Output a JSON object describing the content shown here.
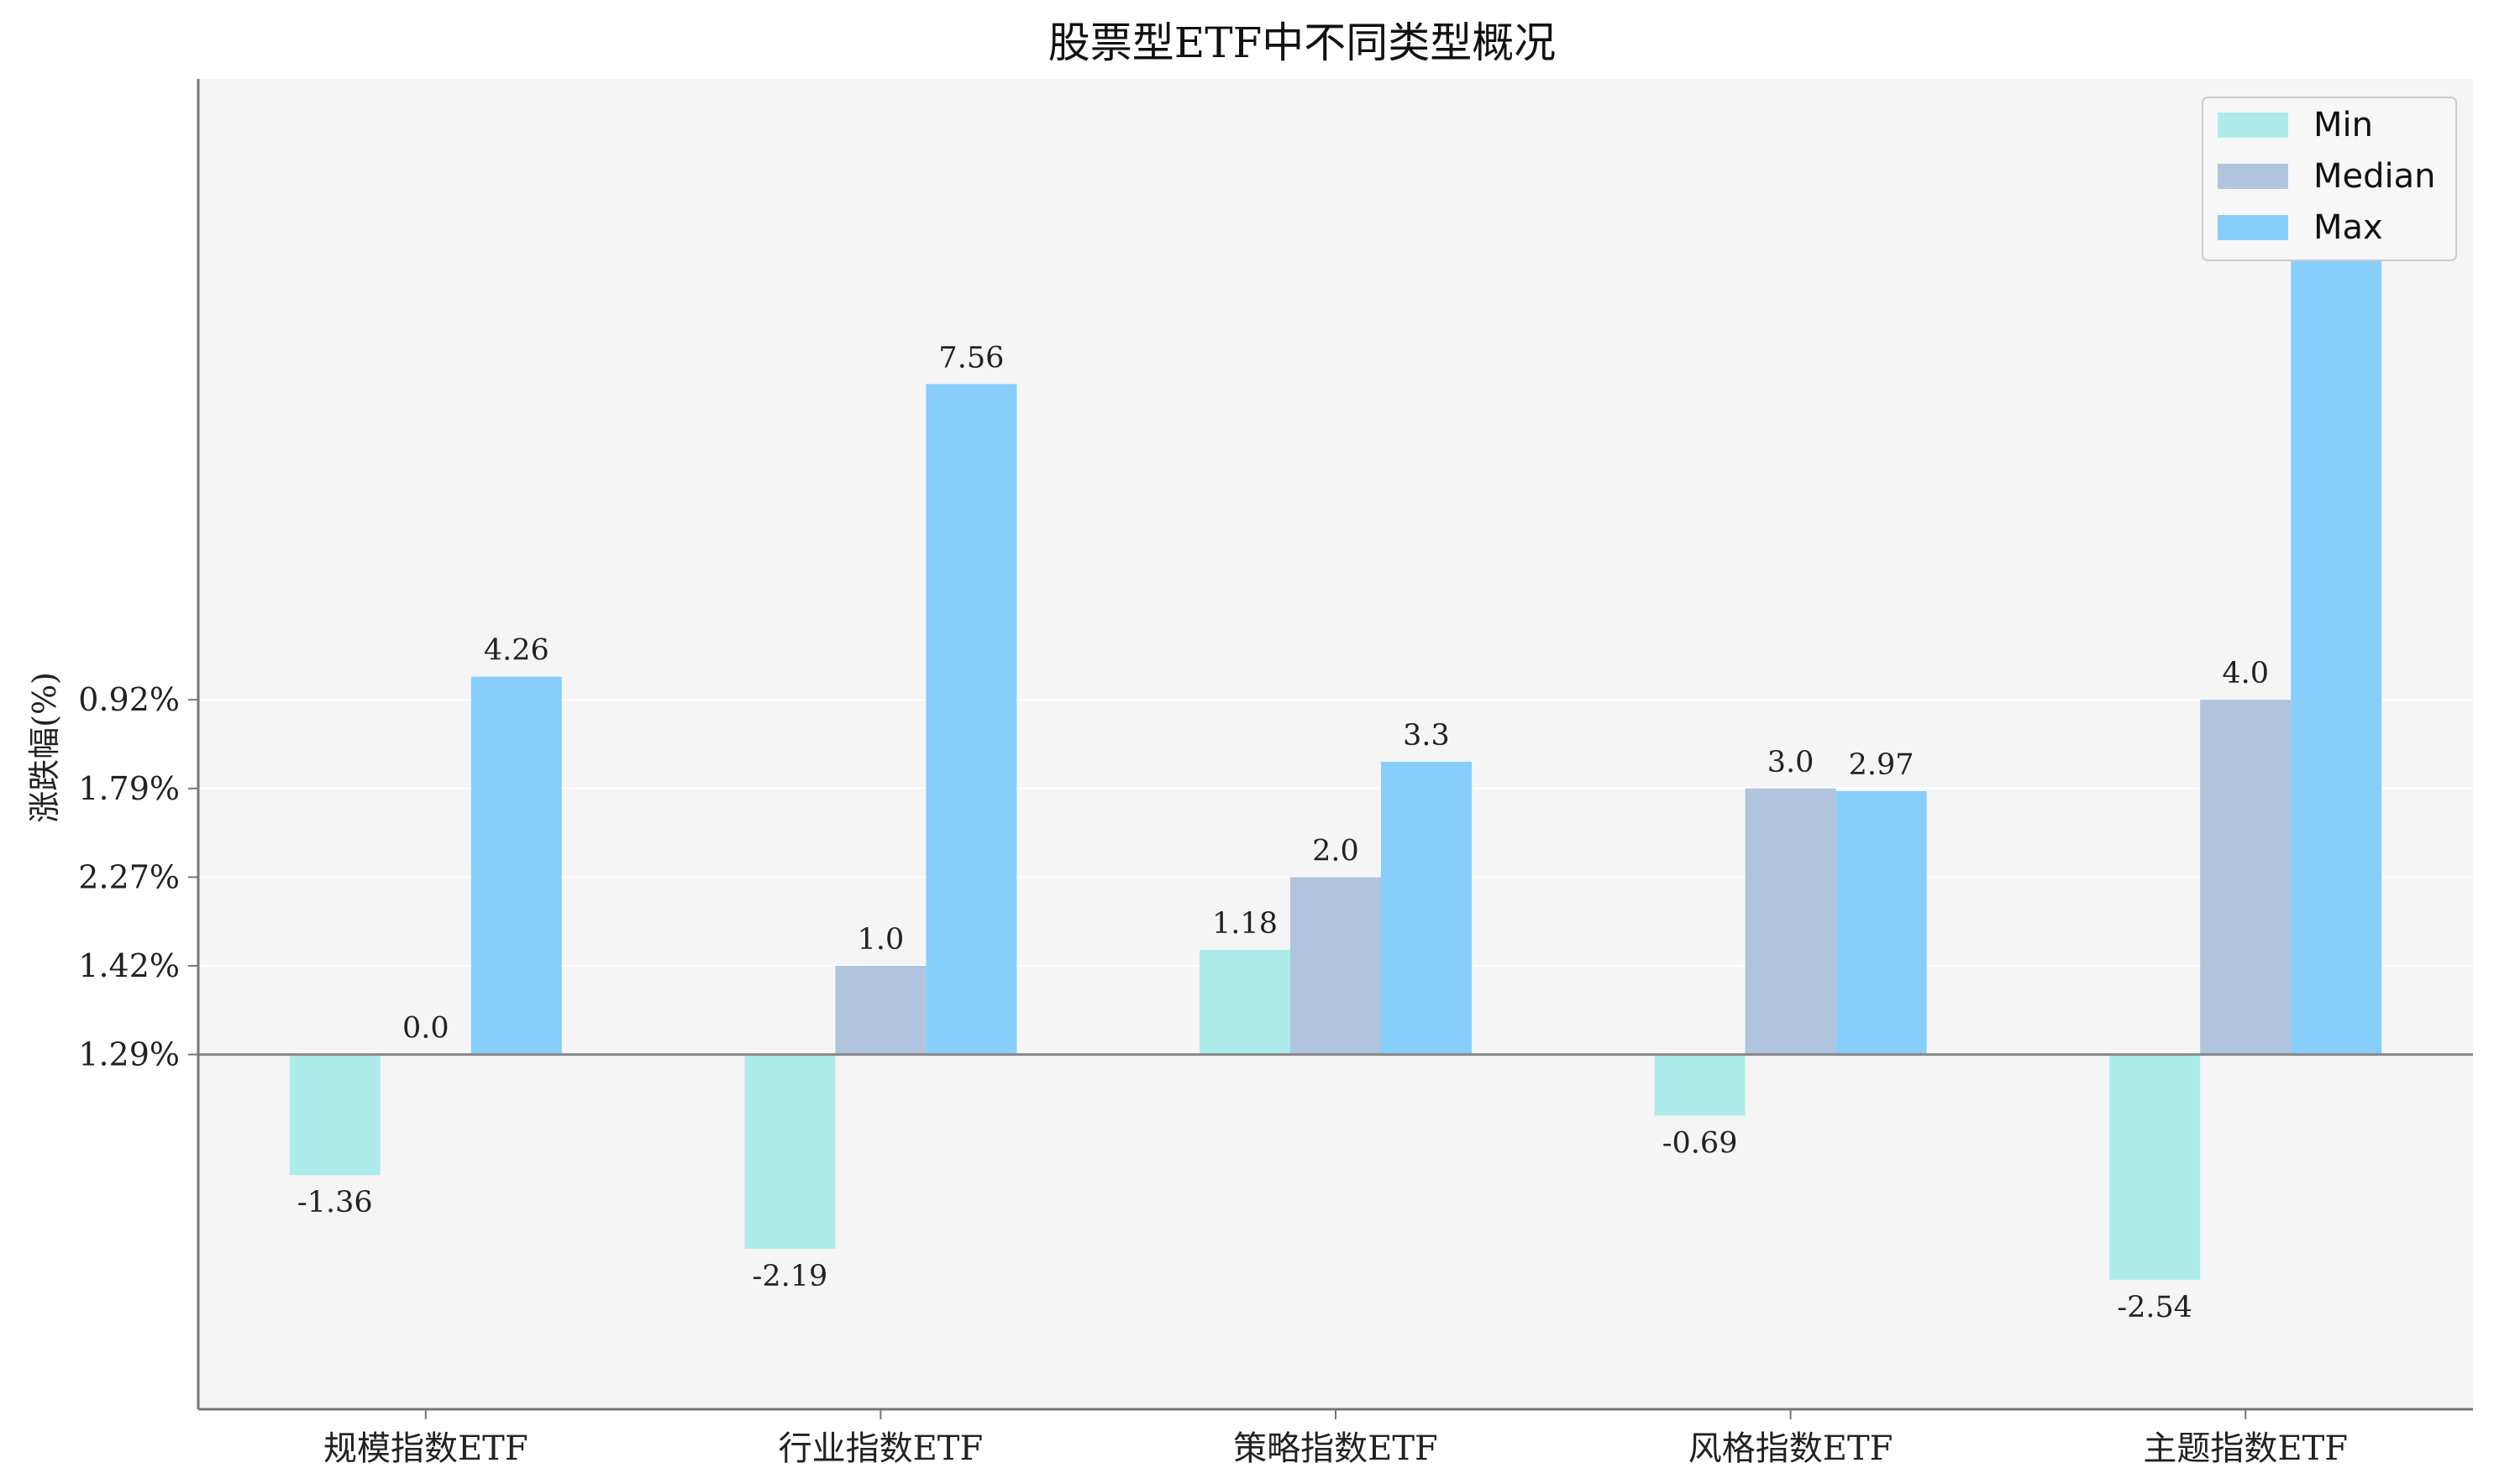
{
  "chart_data": {
    "type": "bar",
    "title": "股票型ETF中不同类型概况",
    "xlabel": "",
    "ylabel": "涨跌幅(%)",
    "categories": [
      "规模指数ETF",
      "行业指数ETF",
      "策略指数ETF",
      "风格指数ETF",
      "主题指数ETF"
    ],
    "series": [
      {
        "name": "Min",
        "color": "#aeeceb",
        "values": [
          -1.36,
          -2.19,
          1.18,
          -0.69,
          -2.54
        ]
      },
      {
        "name": "Median",
        "color": "#b0c4de",
        "values": [
          0.0,
          1.0,
          2.0,
          3.0,
          4.0
        ]
      },
      {
        "name": "Max",
        "color": "#87cefa",
        "values": [
          4.26,
          7.56,
          3.3,
          2.97,
          9.05
        ]
      }
    ],
    "value_labels": [
      [
        "-1.36",
        "-2.19",
        "1.18",
        "-0.69",
        "-2.54"
      ],
      [
        "0.0",
        "1.0",
        "2.0",
        "3.0",
        "4.0"
      ],
      [
        "4.26",
        "7.56",
        "3.3",
        "2.97",
        "9.05"
      ]
    ],
    "ylim": [
      -4.0,
      11.0
    ],
    "yticks": [
      {
        "value": 0,
        "label": "1.29%"
      },
      {
        "value": 1,
        "label": "1.42%"
      },
      {
        "value": 2,
        "label": "2.27%"
      },
      {
        "value": 3,
        "label": "1.79%"
      },
      {
        "value": 4,
        "label": "0.92%"
      }
    ],
    "grid": "y",
    "legend": "top-right",
    "background": "#f5f5f5"
  }
}
